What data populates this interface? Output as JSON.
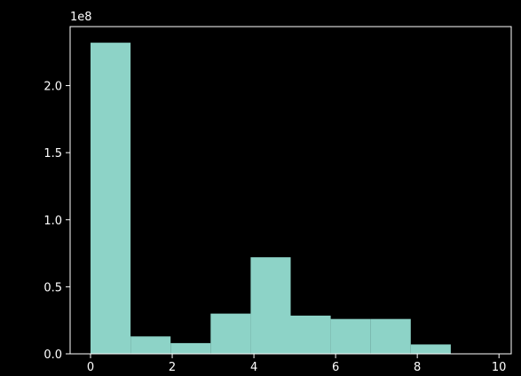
{
  "chart_data": {
    "type": "bar",
    "title": "",
    "xlabel": "",
    "ylabel": "",
    "y_scale_label": "1e8",
    "bar_color": "#8dd3c7",
    "background": "#000000",
    "foreground": "#ffffff",
    "grid": false,
    "xlim": [
      -0.5,
      10.3
    ],
    "ylim": [
      0,
      244000000
    ],
    "x_ticks": [
      0,
      2,
      4,
      6,
      8,
      10
    ],
    "x_tick_labels": [
      "0",
      "2",
      "4",
      "6",
      "8",
      "10"
    ],
    "y_ticks": [
      0,
      50000000,
      100000000,
      150000000,
      200000000
    ],
    "y_tick_labels": [
      "0.0",
      "0.5",
      "1.0",
      "1.5",
      "2.0"
    ],
    "bins": [
      {
        "x0": 0.0,
        "x1": 0.98,
        "value": 232000000
      },
      {
        "x0": 0.98,
        "x1": 1.96,
        "value": 13000000
      },
      {
        "x0": 1.96,
        "x1": 2.94,
        "value": 8000000
      },
      {
        "x0": 2.94,
        "x1": 3.92,
        "value": 30000000
      },
      {
        "x0": 3.92,
        "x1": 4.9,
        "value": 72000000
      },
      {
        "x0": 4.9,
        "x1": 5.88,
        "value": 28500000
      },
      {
        "x0": 5.88,
        "x1": 6.86,
        "value": 26000000
      },
      {
        "x0": 6.86,
        "x1": 7.84,
        "value": 26000000
      },
      {
        "x0": 7.84,
        "x1": 8.82,
        "value": 7000000
      },
      {
        "x0": 8.82,
        "x1": 9.8,
        "value": 0
      }
    ]
  }
}
